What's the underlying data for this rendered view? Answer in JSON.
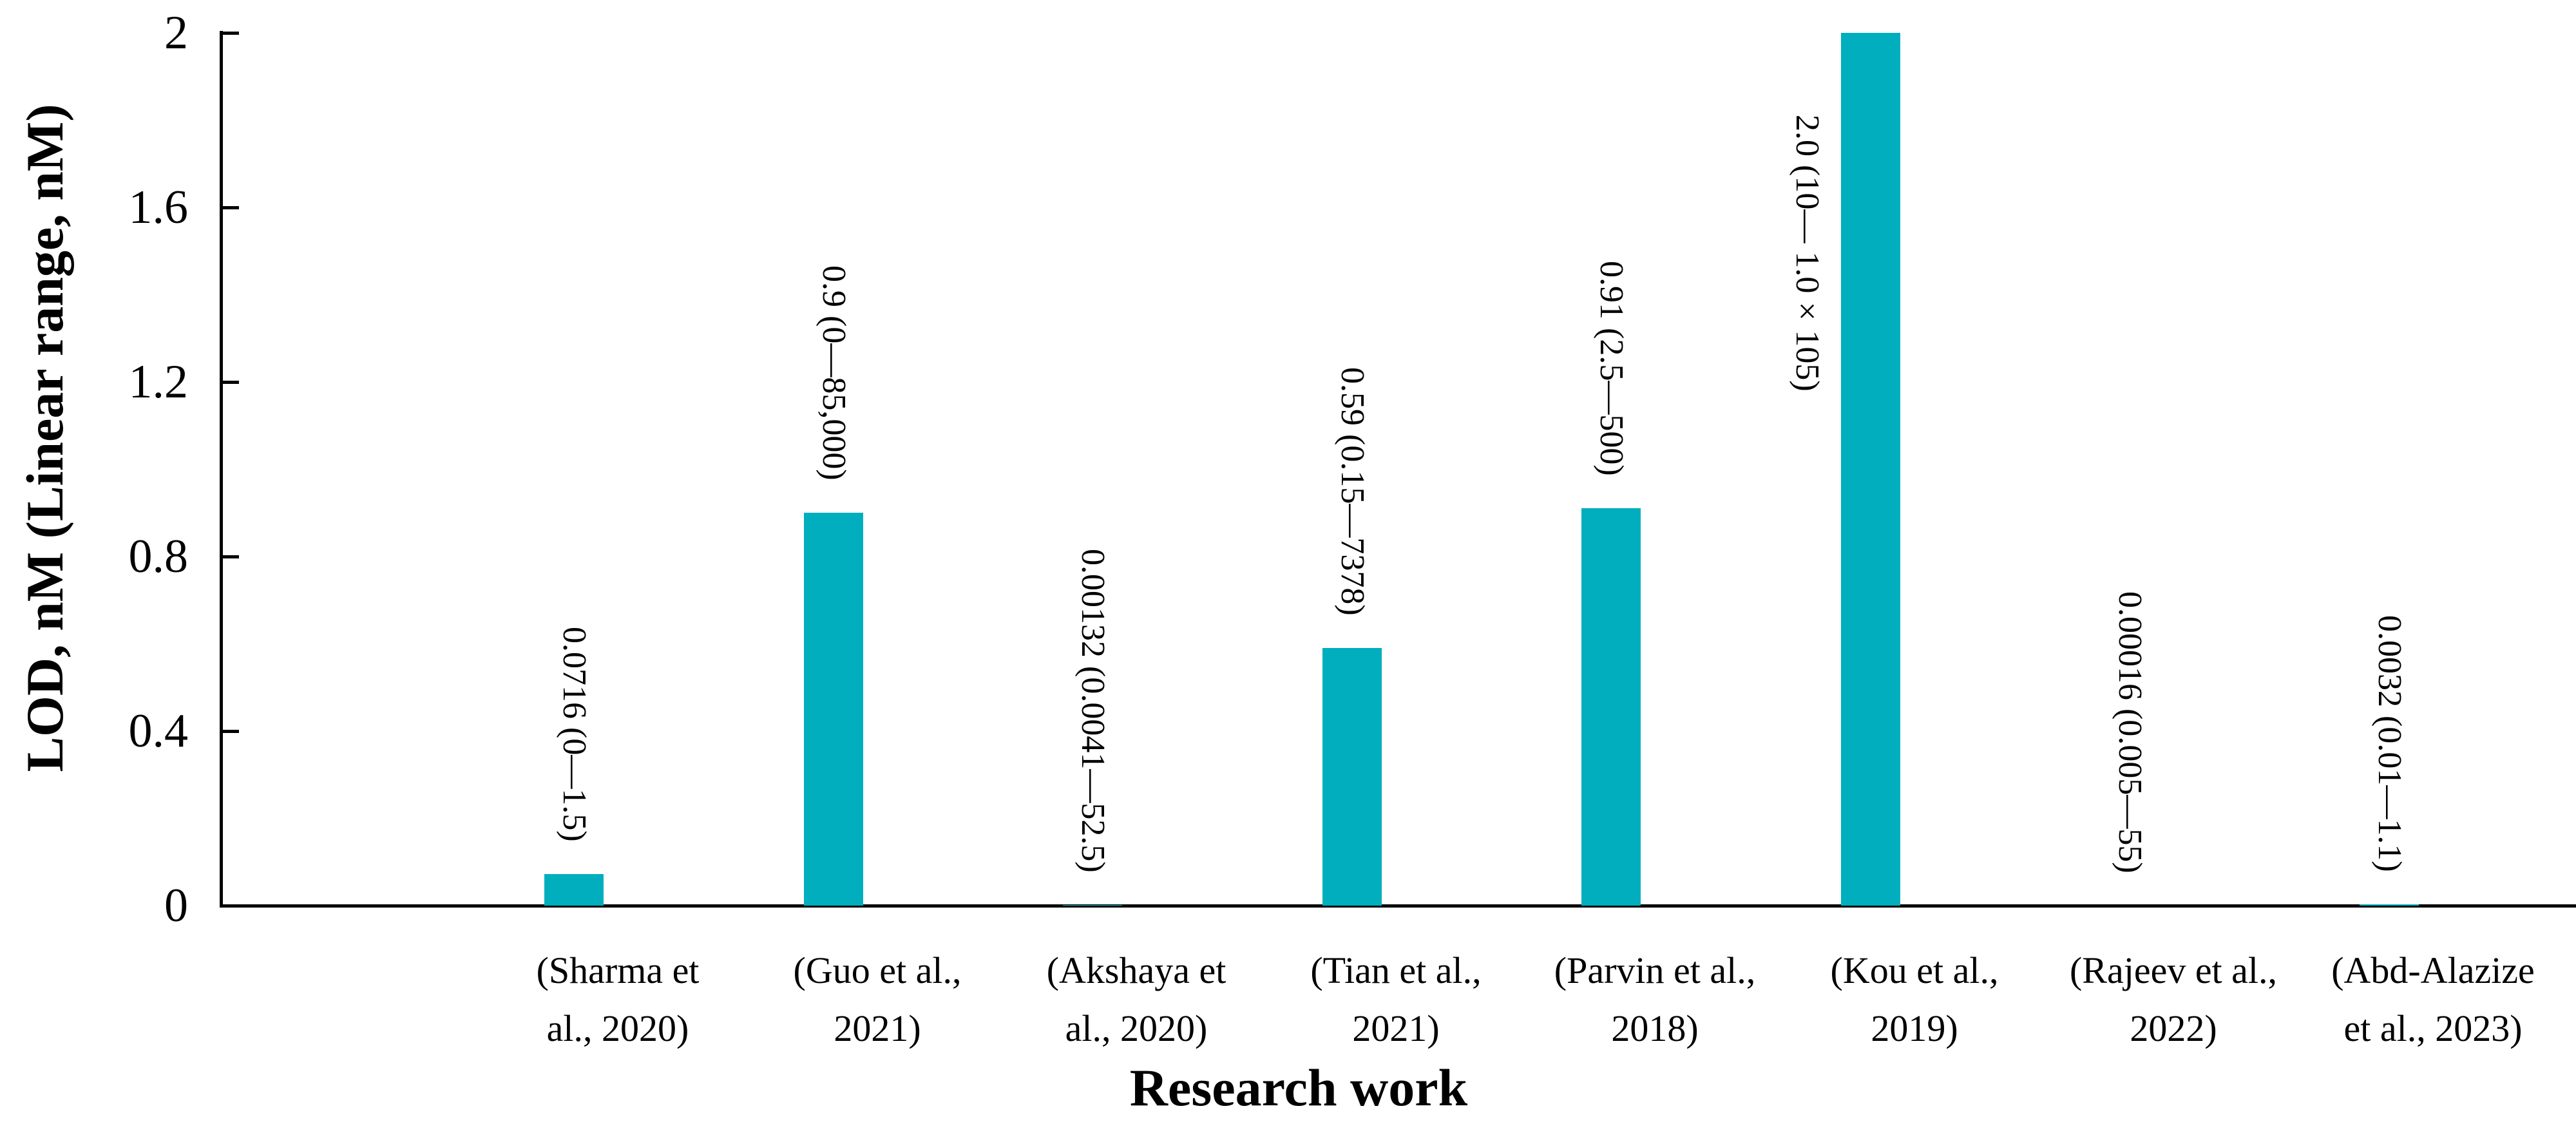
{
  "chart_data": {
    "type": "bar",
    "title": "",
    "xlabel": "Research work",
    "ylabel": "LOD, nM (Linear range, nM)",
    "ylim": [
      0,
      2
    ],
    "grid": false,
    "legend": "none",
    "bar_color": "#00AEBD",
    "axis_color": "#000000",
    "ytick_labels": [
      "2",
      "1.6",
      "1.2",
      "0.8",
      "0.4",
      "0"
    ],
    "ytick_values": [
      2,
      1.6,
      1.2,
      0.8,
      0.4,
      0
    ],
    "categories": [
      "(Sharma et al., 2020)",
      "(Guo et al., 2021)",
      "(Akshaya et al., 2020)",
      "(Tian et al., 2021)",
      "(Parvin et al., 2018)",
      "(Kou et al., 2019)",
      "(Rajeev et al., 2022)",
      "(Abd-Alazize et al., 2023)"
    ],
    "values": [
      0.0716,
      0.9,
      0.00132,
      0.59,
      0.91,
      2.0,
      0.00016,
      0.0032
    ],
    "bars": [
      {
        "category_line1": "(Sharma et",
        "category_line2": "al., 2020)",
        "value": 0.0716,
        "data_label": "0.0716 (0—1.5)"
      },
      {
        "category_line1": "(Guo et al.,",
        "category_line2": "2021)",
        "value": 0.9,
        "data_label": "0.9 (0—85,000)"
      },
      {
        "category_line1": "(Akshaya et",
        "category_line2": "al., 2020)",
        "value": 0.00132,
        "data_label": "0.00132 (0.0041—52.5)"
      },
      {
        "category_line1": "(Tian et al.,",
        "category_line2": "2021)",
        "value": 0.59,
        "data_label": "0.59 (0.15—7378)"
      },
      {
        "category_line1": "(Parvin et al.,",
        "category_line2": "2018)",
        "value": 0.91,
        "data_label": "0.91 (2.5—500)"
      },
      {
        "category_line1": "(Kou et al.,",
        "category_line2": "2019)",
        "value": 2.0,
        "data_label": "2.0 (10— 1.0×105)"
      },
      {
        "category_line1": "(Rajeev et al.,",
        "category_line2": "2022)",
        "value": 0.00016,
        "data_label": "0.00016 (0.005—55)"
      },
      {
        "category_line1": "(Abd-Alazize",
        "category_line2": "et al., 2023)",
        "value": 0.0032,
        "data_label": "0.0032 (0.01—1.1)"
      }
    ]
  }
}
